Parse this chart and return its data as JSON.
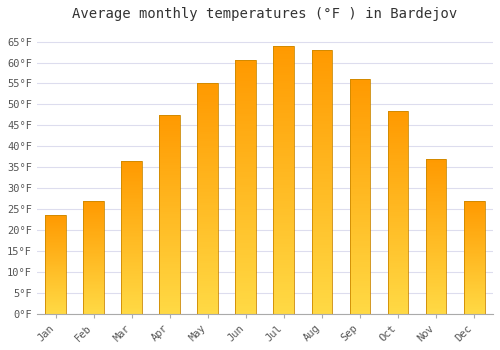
{
  "title": "Average monthly temperatures (°F ) in Bardejov",
  "months": [
    "Jan",
    "Feb",
    "Mar",
    "Apr",
    "May",
    "Jun",
    "Jul",
    "Aug",
    "Sep",
    "Oct",
    "Nov",
    "Dec"
  ],
  "values": [
    23.5,
    27.0,
    36.5,
    47.5,
    55.0,
    60.5,
    64.0,
    63.0,
    56.0,
    48.5,
    37.0,
    27.0
  ],
  "bar_color_top": "#FFD966",
  "bar_color_bottom": "#FFA500",
  "bar_edge_color": "#CC8800",
  "background_color": "#FFFFFF",
  "plot_bg_color": "#FFFFFF",
  "grid_color": "#DDDDEE",
  "ylim": [
    0,
    68
  ],
  "yticks": [
    0,
    5,
    10,
    15,
    20,
    25,
    30,
    35,
    40,
    45,
    50,
    55,
    60,
    65
  ],
  "ylabel_suffix": "°F",
  "title_fontsize": 10,
  "tick_fontsize": 7.5,
  "bar_width": 0.55
}
